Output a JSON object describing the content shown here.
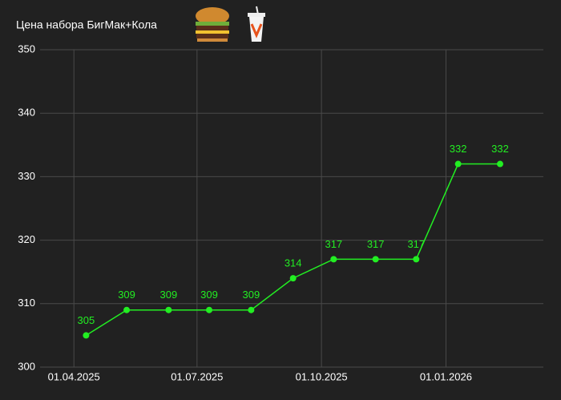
{
  "chart_data": {
    "type": "line",
    "title": "Цена набора БигМак+Кола",
    "x": [
      "2025-04-10",
      "2025-05-10",
      "2025-06-10",
      "2025-07-10",
      "2025-08-10",
      "2025-09-10",
      "2025-10-10",
      "2025-11-10",
      "2025-12-10",
      "2026-01-10",
      "2026-02-10"
    ],
    "series": [
      {
        "color": "#22ee22",
        "values": [
          305,
          309,
          309,
          309,
          309,
          314,
          317,
          317,
          317,
          332,
          332
        ]
      }
    ],
    "xlim": [
      "2025-03-07",
      "2026-03-14"
    ],
    "xticks": [
      {
        "value": "2025-04-01",
        "label": "01.04.2025"
      },
      {
        "value": "2025-07-01",
        "label": "01.07.2025"
      },
      {
        "value": "2025-10-01",
        "label": "01.10.2025"
      },
      {
        "value": "2026-01-01",
        "label": "01.01.2026"
      }
    ],
    "ylim": [
      300,
      350
    ],
    "yticks": [
      300,
      310,
      320,
      330,
      340,
      350
    ],
    "grid": true
  }
}
